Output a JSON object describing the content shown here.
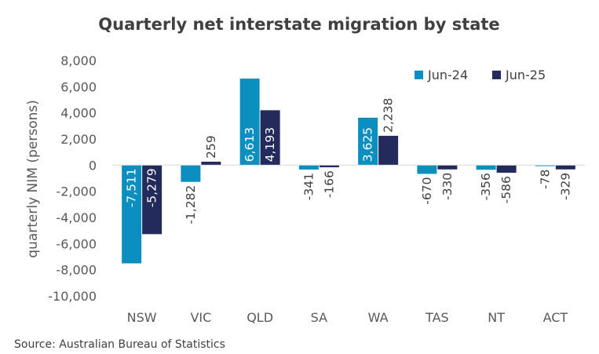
{
  "chart_data": {
    "type": "bar",
    "title": "Quarterly net interstate migration by state",
    "ylabel": "quarterly NIM (persons)",
    "xlabel": "",
    "categories": [
      "NSW",
      "VIC",
      "QLD",
      "SA",
      "WA",
      "TAS",
      "NT",
      "ACT"
    ],
    "series": [
      {
        "name": "Jun-24",
        "color": "#0A8FC0",
        "values": [
          -7511,
          -1282,
          6613,
          -341,
          3625,
          -670,
          -356,
          -78
        ],
        "labels": [
          "-7,511",
          "-1,282",
          "6,613",
          "-341",
          "3,625",
          "-670",
          "-356",
          "-78"
        ]
      },
      {
        "name": "Jun-25",
        "color": "#232B5C",
        "values": [
          -5279,
          259,
          4193,
          -166,
          2238,
          -330,
          -586,
          -329
        ],
        "labels": [
          "-5,279",
          "259",
          "4,193",
          "-166",
          "2,238",
          "-330",
          "-586",
          "-329"
        ]
      }
    ],
    "ylim": [
      -10000,
      8000
    ],
    "yticks": [
      8000,
      6000,
      4000,
      2000,
      0,
      -2000,
      -4000,
      -6000,
      -8000,
      -10000
    ],
    "ytick_labels": [
      "8,000",
      "6,000",
      "4,000",
      "2,000",
      "0",
      "-2,000",
      "-4,000",
      "-6,000",
      "-8,000",
      "-10,000"
    ],
    "grid": false,
    "legend_position": "top-right",
    "source": "Source: Australian Bureau of Statistics"
  }
}
